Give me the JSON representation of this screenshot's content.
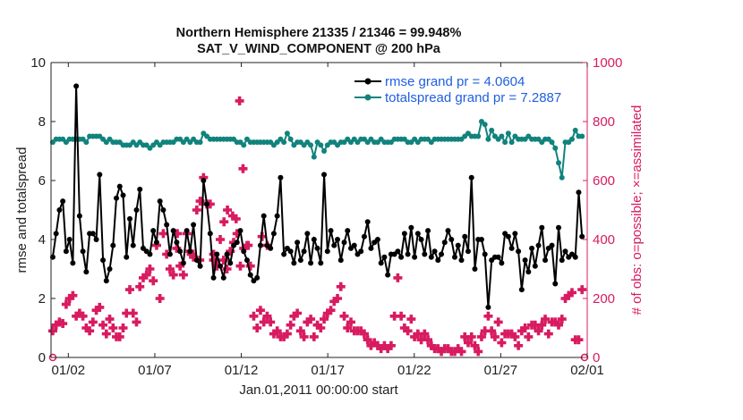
{
  "chart_data": {
    "type": "line",
    "title": "Northern Hemisphere 21335 / 21346 = 99.948%",
    "subtitle": "SAT_V_WIND_COMPONENT @ 200 hPa",
    "xlabel": "Jan.01,2011 00:00:00 start",
    "ylabel_left": "rmse and totalspread",
    "ylabel_right": "# of obs: o=possible; ×=assimilated",
    "x_tick_labels": [
      "01/02",
      "01/07",
      "01/12",
      "01/17",
      "01/22",
      "01/27",
      "02/01"
    ],
    "x_tick_days": [
      2,
      7,
      12,
      17,
      22,
      27,
      32
    ],
    "xlim_days": [
      1.0,
      32.0
    ],
    "ylim_left": [
      0,
      10
    ],
    "y_ticks_left": [
      0,
      2,
      4,
      6,
      8,
      10
    ],
    "ylim_right": [
      0,
      1000
    ],
    "y_ticks_right": [
      0,
      200,
      400,
      600,
      800,
      1000
    ],
    "grid": false,
    "legend_position": "top-right",
    "colors": {
      "rmse": "#000000",
      "totalspread": "#11837d",
      "obs": "#d81b60",
      "right_axis": "#d81b60",
      "legend_text": "#1f5fe0"
    },
    "series": [
      {
        "name": "rmse grand pr = 4.0604",
        "axis": "left",
        "values": [
          3.4,
          4.2,
          5.0,
          5.3,
          3.6,
          4.0,
          3.2,
          9.2,
          4.8,
          3.6,
          2.9,
          4.2,
          4.2,
          4.0,
          6.2,
          3.3,
          2.6,
          3.0,
          3.8,
          5.4,
          5.8,
          5.5,
          3.4,
          4.7,
          3.8,
          5.0,
          5.7,
          3.7,
          3.6,
          3.5,
          4.3,
          3.9,
          5.3,
          5.0,
          4.5,
          3.5,
          4.3,
          3.9,
          3.6,
          3.2,
          4.3,
          3.6,
          4.5,
          3.3,
          3.1,
          6.0,
          5.2,
          4.2,
          2.7,
          3.5,
          3.1,
          2.7,
          3.5,
          3.2,
          3.8,
          3.9,
          4.3,
          3.6,
          3.3,
          2.8,
          2.6,
          2.7,
          3.8,
          4.8,
          3.8,
          3.7,
          4.2,
          4.8,
          6.1,
          3.5,
          3.7,
          3.6,
          3.2,
          3.9,
          3.3,
          3.6,
          4.2,
          3.2,
          4.0,
          3.7,
          3.2,
          6.2,
          3.6,
          4.3,
          3.8,
          4.0,
          3.3,
          3.9,
          4.3,
          3.7,
          3.8,
          3.5,
          3.6,
          4.1,
          4.6,
          3.7,
          3.9,
          4.0,
          3.2,
          3.4,
          2.8,
          3.5,
          3.5,
          3.6,
          3.4,
          4.2,
          3.5,
          4.4,
          3.4,
          4.2,
          4.0,
          3.5,
          4.3,
          3.4,
          3.6,
          3.3,
          3.5,
          3.9,
          4.3,
          4.0,
          3.4,
          3.8,
          3.3,
          4.1,
          3.6,
          6.1,
          3.0,
          4.0,
          4.0,
          3.5,
          1.7,
          3.3,
          3.4,
          3.4,
          3.2,
          4.2,
          4.1,
          3.7,
          4.2,
          3.6,
          2.3,
          3.3,
          2.9,
          3.7,
          3.1,
          3.8,
          4.4,
          3.3,
          3.7,
          3.8,
          2.5,
          4.4,
          3.3,
          3.6,
          3.4,
          3.5,
          3.4,
          5.6,
          4.1
        ]
      },
      {
        "name": "totalspread grand pr = 7.2887",
        "axis": "left",
        "values": [
          7.3,
          7.4,
          7.4,
          7.4,
          7.3,
          7.4,
          7.4,
          7.4,
          7.4,
          7.4,
          7.3,
          7.5,
          7.5,
          7.5,
          7.5,
          7.4,
          7.3,
          7.4,
          7.3,
          7.3,
          7.3,
          7.2,
          7.2,
          7.2,
          7.3,
          7.2,
          7.3,
          7.2,
          7.2,
          7.1,
          7.2,
          7.3,
          7.2,
          7.3,
          7.3,
          7.3,
          7.3,
          7.4,
          7.4,
          7.3,
          7.4,
          7.3,
          7.4,
          7.3,
          7.3,
          7.6,
          7.5,
          7.4,
          7.4,
          7.4,
          7.4,
          7.4,
          7.4,
          7.4,
          7.4,
          7.3,
          7.3,
          7.2,
          7.4,
          7.3,
          7.3,
          7.3,
          7.3,
          7.3,
          7.3,
          7.3,
          7.2,
          7.3,
          7.4,
          7.3,
          7.6,
          7.4,
          7.2,
          7.3,
          7.3,
          7.2,
          7.3,
          7.2,
          6.8,
          7.3,
          7.2,
          7.0,
          7.2,
          7.3,
          7.3,
          7.2,
          7.3,
          7.3,
          7.4,
          7.3,
          7.4,
          7.3,
          7.4,
          7.4,
          7.3,
          7.4,
          7.3,
          7.3,
          7.4,
          7.3,
          7.3,
          7.3,
          7.4,
          7.4,
          7.4,
          7.4,
          7.3,
          7.3,
          7.4,
          7.3,
          7.4,
          7.4,
          7.4,
          7.3,
          7.4,
          7.4,
          7.4,
          7.4,
          7.4,
          7.4,
          7.4,
          7.4,
          7.4,
          7.5,
          7.6,
          7.5,
          7.5,
          7.5,
          8.0,
          7.9,
          7.4,
          7.7,
          7.5,
          7.4,
          7.5,
          7.3,
          7.6,
          7.3,
          7.5,
          7.4,
          7.4,
          7.4,
          7.5,
          7.4,
          7.4,
          7.4,
          7.3,
          7.4,
          7.4,
          7.3,
          7.1,
          6.6,
          6.1,
          7.3,
          7.3,
          7.4,
          7.7,
          7.5,
          7.5
        ]
      },
      {
        "name": "obs",
        "axis": "right",
        "values": [
          90,
          110,
          120,
          115,
          180,
          200,
          210,
          140,
          150,
          140,
          100,
          90,
          120,
          160,
          170,
          110,
          80,
          130,
          100,
          70,
          70,
          100,
          150,
          230,
          150,
          120,
          240,
          270,
          280,
          300,
          260,
          380,
          200,
          420,
          350,
          300,
          280,
          370,
          310,
          280,
          420,
          360,
          340,
          500,
          530,
          610,
          520,
          520,
          330,
          310,
          400,
          330,
          300,
          360,
          390,
          420,
          310,
          370,
          380,
          310,
          140,
          100,
          160,
          120,
          140,
          120,
          80,
          90,
          70,
          70,
          80,
          110,
          140,
          150,
          90,
          70,
          120,
          130,
          70,
          110,
          100,
          130,
          150,
          160,
          190,
          200,
          240,
          140,
          100,
          120,
          90,
          90,
          90,
          80,
          60,
          40,
          50,
          40,
          30,
          40,
          30,
          40,
          140,
          270,
          140,
          100,
          90,
          130,
          70,
          80,
          60,
          80,
          60,
          40,
          30,
          30,
          20,
          30,
          30,
          20,
          20,
          30,
          20,
          70,
          50,
          70,
          40,
          20,
          70,
          90,
          140,
          90,
          70,
          120,
          50,
          80,
          80,
          80,
          70,
          40,
          90,
          100,
          70,
          110,
          110,
          90,
          110,
          130,
          80,
          120,
          120,
          110,
          130,
          200,
          210,
          220,
          60,
          60,
          230
        ]
      },
      {
        "name": "obs-outliers",
        "axis": "right",
        "values": [
          870,
          640,
          500,
          480,
          470,
          460,
          410,
          380,
          420,
          350,
          330,
          380,
          350
        ]
      }
    ]
  }
}
